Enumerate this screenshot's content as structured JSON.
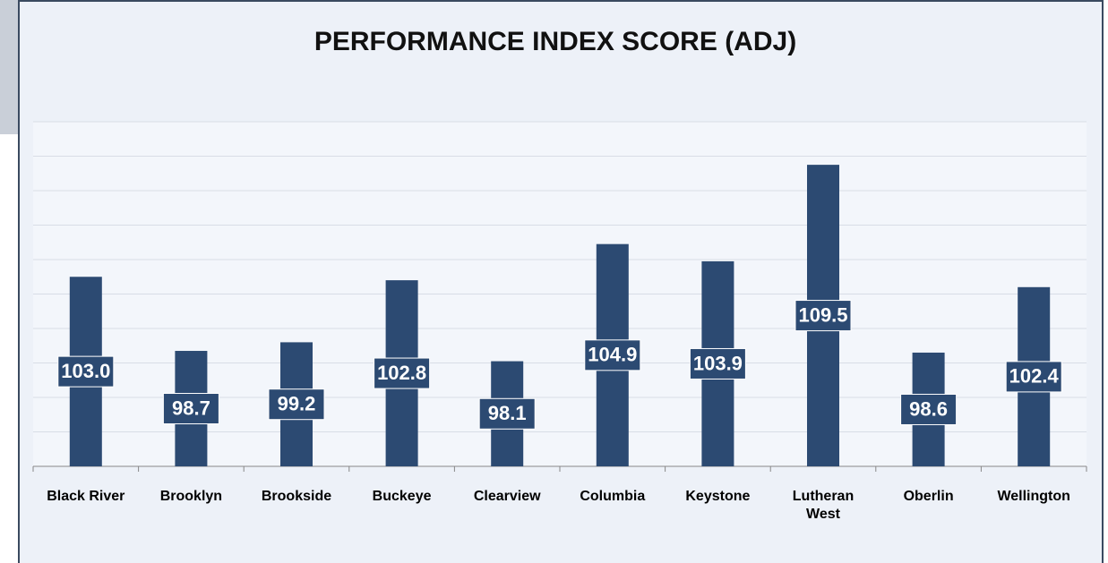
{
  "chart_data": {
    "type": "bar",
    "title": "PERFORMANCE INDEX SCORE (ADJ)",
    "categories": [
      "Black River",
      "Brooklyn",
      "Brookside",
      "Buckeye",
      "Clearview",
      "Columbia",
      "Keystone",
      "Lutheran West",
      "Oberlin",
      "Wellington"
    ],
    "values": [
      103.0,
      98.7,
      99.2,
      102.8,
      98.1,
      104.9,
      103.9,
      109.5,
      98.6,
      102.4
    ],
    "value_labels": [
      "103.0",
      "98.7",
      "99.2",
      "102.8",
      "98.1",
      "104.9",
      "103.9",
      "109.5",
      "98.6",
      "102.4"
    ],
    "color": "#2c4a72",
    "ylim": [
      92,
      112
    ],
    "yticks": [
      92,
      94,
      96,
      98,
      100,
      102,
      104,
      106,
      108,
      110,
      112
    ],
    "grid": true
  }
}
